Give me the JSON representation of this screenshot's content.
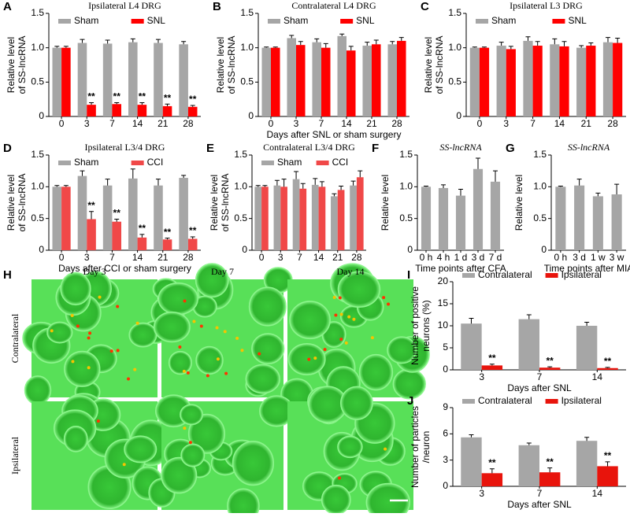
{
  "chart_data": [
    {
      "type": "bar",
      "panel": "A",
      "title": "Ipsilateral L4 DRG",
      "ylabel": [
        "Relative level",
        "of SS-lncRNA"
      ],
      "categories": [
        "0",
        "3",
        "7",
        "14",
        "21",
        "28"
      ],
      "ylim": [
        0,
        1.5
      ],
      "yticks": [
        0,
        0.5,
        {
          "value": 1,
          "label": "1.0"
        },
        1.5
      ],
      "series": [
        {
          "name": "Sham",
          "color": "#a6a6a6",
          "values": [
            1.0,
            1.07,
            1.06,
            1.08,
            1.07,
            1.05
          ],
          "errors": [
            0.02,
            0.05,
            0.05,
            0.05,
            0.05,
            0.04
          ],
          "annotations": [
            null,
            null,
            null,
            null,
            null,
            null
          ]
        },
        {
          "name": "SNL",
          "color": "#ff0000",
          "values": [
            1.0,
            0.17,
            0.18,
            0.17,
            0.15,
            0.14
          ],
          "errors": [
            0.02,
            0.03,
            0.02,
            0.03,
            0.03,
            0.02
          ],
          "annotations": [
            null,
            "**",
            "**",
            "**",
            "**",
            "**"
          ]
        }
      ]
    },
    {
      "type": "bar",
      "panel": "B",
      "title": "Contralateral L4 DRG",
      "ylabel": [
        "Relative level",
        "of SS-lncRNA"
      ],
      "xlabel": "Days after SNL or sham surgery",
      "categories": [
        "0",
        "3",
        "7",
        "14",
        "21",
        "28"
      ],
      "ylim": [
        0,
        1.5
      ],
      "yticks": [
        0,
        0.5,
        {
          "value": 1,
          "label": "1.0"
        },
        1.5
      ],
      "series": [
        {
          "name": "Sham",
          "color": "#a6a6a6",
          "values": [
            1.0,
            1.14,
            1.08,
            1.17,
            1.03,
            1.05
          ],
          "errors": [
            0.01,
            0.04,
            0.05,
            0.03,
            0.05,
            0.04
          ],
          "annotations": [
            null,
            null,
            null,
            null,
            null,
            null
          ]
        },
        {
          "name": "SNL",
          "color": "#ff0000",
          "values": [
            1.0,
            1.04,
            1.0,
            0.96,
            1.05,
            1.1
          ],
          "errors": [
            0.01,
            0.05,
            0.06,
            0.06,
            0.06,
            0.05
          ],
          "annotations": [
            null,
            null,
            null,
            null,
            null,
            null
          ]
        }
      ]
    },
    {
      "type": "bar",
      "panel": "C",
      "title": "Ipsilateral L3 DRG",
      "ylabel": [
        "Relative level",
        "of SS-lncRNA"
      ],
      "categories": [
        "0",
        "3",
        "7",
        "14",
        "21",
        "28"
      ],
      "ylim": [
        0,
        1.5
      ],
      "yticks": [
        0,
        0.5,
        {
          "value": 1,
          "label": "1.0"
        },
        1.5
      ],
      "series": [
        {
          "name": "Sham",
          "color": "#a6a6a6",
          "values": [
            1.0,
            1.03,
            1.1,
            1.05,
            1.0,
            1.08
          ],
          "errors": [
            0.01,
            0.05,
            0.06,
            0.08,
            0.03,
            0.07
          ],
          "annotations": [
            null,
            null,
            null,
            null,
            null,
            null
          ]
        },
        {
          "name": "SNL",
          "color": "#ff0000",
          "values": [
            1.0,
            0.98,
            1.03,
            1.02,
            1.03,
            1.07
          ],
          "errors": [
            0.01,
            0.04,
            0.06,
            0.07,
            0.04,
            0.07
          ],
          "annotations": [
            null,
            null,
            null,
            null,
            null,
            null
          ]
        }
      ]
    },
    {
      "type": "bar",
      "panel": "D",
      "title": "Ipsilateral L3/4 DRG",
      "ylabel": [
        "Relative level",
        "of SS-lncRNA"
      ],
      "xlabel": "Days after CCI or sham surgery",
      "categories": [
        "0",
        "3",
        "7",
        "14",
        "21",
        "28"
      ],
      "ylim": [
        0,
        1.5
      ],
      "yticks": [
        0,
        0.5,
        {
          "value": 1,
          "label": "1.0"
        },
        1.5
      ],
      "series": [
        {
          "name": "Sham",
          "color": "#a6a6a6",
          "values": [
            1.0,
            1.17,
            1.02,
            1.13,
            1.02,
            1.14
          ],
          "errors": [
            0.02,
            0.08,
            0.1,
            0.15,
            0.1,
            0.04
          ],
          "annotations": [
            null,
            null,
            null,
            null,
            null,
            null
          ]
        },
        {
          "name": "CCI",
          "color": "#f04848",
          "values": [
            1.0,
            0.49,
            0.45,
            0.2,
            0.17,
            0.18
          ],
          "errors": [
            0.02,
            0.12,
            0.04,
            0.05,
            0.02,
            0.03
          ],
          "annotations": [
            null,
            "**",
            "**",
            "**",
            "**",
            "**"
          ]
        }
      ]
    },
    {
      "type": "bar",
      "panel": "E",
      "title": "Contralateral L3/4 DRG",
      "ylabel": [
        "Relative level",
        "of SS-lncRNA"
      ],
      "categories": [
        "0",
        "3",
        "7",
        "14",
        "21",
        "28"
      ],
      "ylim": [
        0,
        1.5
      ],
      "yticks": [
        0,
        0.5,
        {
          "value": 1,
          "label": "1.0"
        },
        1.5
      ],
      "series": [
        {
          "name": "Sham",
          "color": "#a6a6a6",
          "values": [
            1.0,
            1.02,
            1.12,
            1.03,
            0.85,
            1.02
          ],
          "errors": [
            0.02,
            0.08,
            0.12,
            0.1,
            0.04,
            0.07
          ],
          "annotations": [
            null,
            null,
            null,
            null,
            null,
            null
          ]
        },
        {
          "name": "CCI",
          "color": "#f04848",
          "values": [
            1.0,
            1.0,
            0.97,
            1.0,
            0.95,
            1.15
          ],
          "errors": [
            0.02,
            0.12,
            0.08,
            0.08,
            0.06,
            0.1
          ],
          "annotations": [
            null,
            null,
            null,
            null,
            null,
            null
          ]
        }
      ]
    },
    {
      "type": "bar",
      "panel": "F",
      "title": "SS-lncRNA",
      "title_italic": true,
      "ylabel": [
        "Relative level"
      ],
      "xlabel": "Time points after CFA",
      "categories": [
        "0 h",
        "4 h",
        "1 d",
        "3 d",
        "7 d"
      ],
      "ylim": [
        0,
        1.5
      ],
      "yticks": [
        0,
        0.5,
        {
          "value": 1,
          "label": "1.0"
        },
        1.5
      ],
      "series": [
        {
          "color": "#a6a6a6",
          "values": [
            1.0,
            0.98,
            0.86,
            1.28,
            1.08
          ],
          "errors": [
            0.01,
            0.05,
            0.1,
            0.17,
            0.17
          ],
          "annotations": [
            null,
            null,
            null,
            null,
            null
          ]
        }
      ]
    },
    {
      "type": "bar",
      "panel": "G",
      "title": "SS-lncRNA",
      "title_italic": true,
      "ylabel": [
        "Relative level"
      ],
      "xlabel": "Time points after MIA",
      "categories": [
        "0 h",
        "3 d",
        "1 w",
        "3 w"
      ],
      "ylim": [
        0,
        1.5
      ],
      "yticks": [
        0,
        0.5,
        {
          "value": 1,
          "label": "1.0"
        },
        1.5
      ],
      "series": [
        {
          "color": "#a6a6a6",
          "values": [
            1.0,
            1.02,
            0.85,
            0.88
          ],
          "errors": [
            0.01,
            0.1,
            0.05,
            0.16
          ],
          "annotations": [
            null,
            null,
            null,
            null
          ]
        }
      ]
    },
    {
      "type": "bar",
      "panel": "I",
      "ylabel": [
        "Number of positive",
        "neurons (%)"
      ],
      "xlabel": "Days after SNL",
      "categories": [
        "3",
        "7",
        "14"
      ],
      "ylim": [
        0,
        20
      ],
      "yticks": [
        0,
        5,
        10,
        15,
        20
      ],
      "series": [
        {
          "name": "Contralateral",
          "color": "#a6a6a6",
          "values": [
            10.5,
            11.5,
            10.0
          ],
          "errors": [
            1.2,
            1.0,
            0.8
          ],
          "annotations": [
            null,
            null,
            null
          ]
        },
        {
          "name": "Ipsilateral",
          "color": "#e8140c",
          "values": [
            1.0,
            0.5,
            0.4
          ],
          "errors": [
            0.3,
            0.2,
            0.15
          ],
          "annotations": [
            "**",
            "**",
            "**"
          ]
        }
      ]
    },
    {
      "type": "bar",
      "panel": "J",
      "ylabel": [
        "Number of particles",
        "/neuron"
      ],
      "xlabel": "Days after SNL",
      "categories": [
        "3",
        "7",
        "14"
      ],
      "ylim": [
        0,
        9
      ],
      "yticks": [
        0,
        3,
        6,
        9
      ],
      "series": [
        {
          "name": "Contralateral",
          "color": "#a6a6a6",
          "values": [
            5.6,
            4.7,
            5.2
          ],
          "errors": [
            0.3,
            0.25,
            0.4
          ],
          "annotations": [
            null,
            null,
            null
          ]
        },
        {
          "name": "Ipsilateral",
          "color": "#e8140c",
          "values": [
            1.5,
            1.6,
            2.3
          ],
          "errors": [
            0.5,
            0.5,
            0.5
          ],
          "annotations": [
            "**",
            "**",
            "**"
          ]
        }
      ]
    }
  ],
  "images": {
    "panel": "H",
    "columns": [
      "Day 3",
      "Day 7",
      "Day 14"
    ],
    "rows": [
      "Contralateral",
      "Ipsilateral"
    ]
  }
}
